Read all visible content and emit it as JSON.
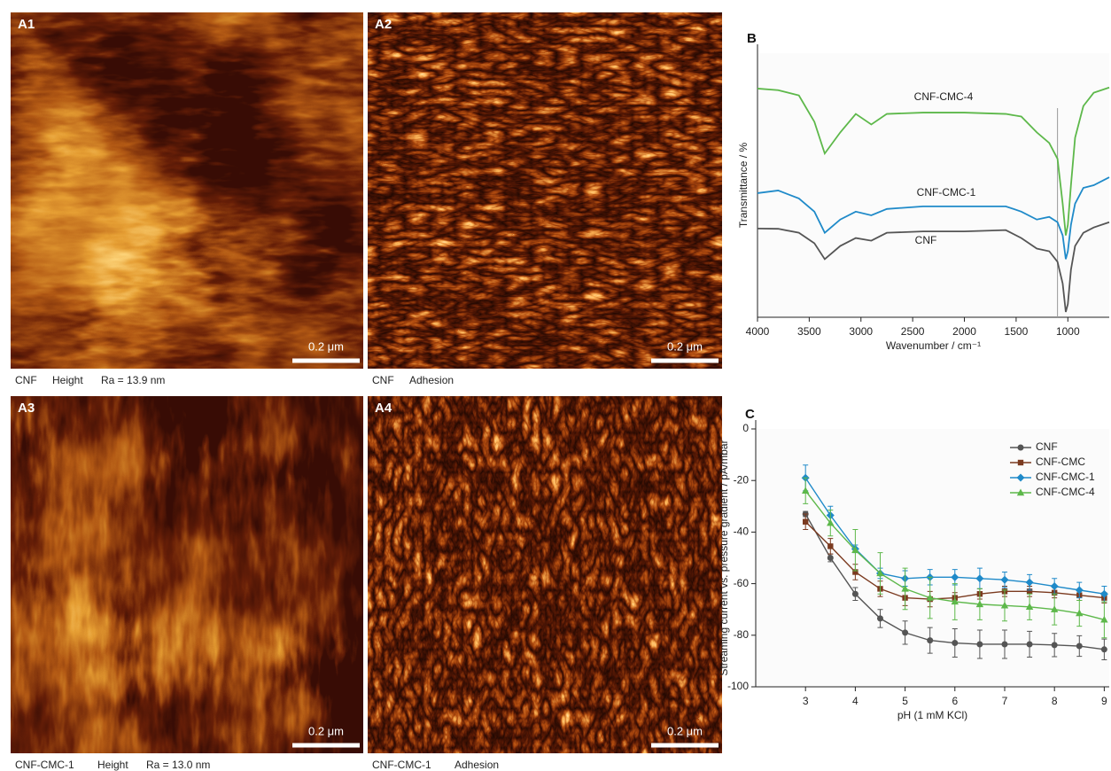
{
  "panels": [
    {
      "label": "A1",
      "sample": "CNF",
      "mode": "Height",
      "roughness": "Ra = 13.9 nm",
      "scale_bar": "0.2 μm"
    },
    {
      "label": "A2",
      "sample": "CNF",
      "mode": "Adhesion",
      "scale_bar": "0.2 μm"
    },
    {
      "label": "A3",
      "sample": "CNF-CMC-1",
      "mode": "Height",
      "roughness": "Ra = 13.0 nm",
      "scale_bar": "0.2 μm"
    },
    {
      "label": "A4",
      "sample": "CNF-CMC-1",
      "mode": "Adhesion",
      "scale_bar": "0.2 μm"
    }
  ],
  "chart_data": [
    {
      "type": "line",
      "panel": "B",
      "xlabel": "Wavenumber / cm⁻¹",
      "ylabel": "Transmittance / %",
      "xlim": [
        4000,
        600
      ],
      "ylim": [
        0,
        100
      ],
      "xticks": [
        4000,
        3500,
        3000,
        2500,
        2000,
        1500,
        1000
      ],
      "reference_line": 1100,
      "x": [
        4000,
        3800,
        3600,
        3450,
        3350,
        3200,
        3050,
        2900,
        2750,
        2400,
        2000,
        1600,
        1450,
        1300,
        1180,
        1100,
        1050,
        1020,
        1000,
        970,
        930,
        850,
        750,
        600
      ],
      "series": [
        {
          "name": "CNF-CMC-4",
          "color": "#5db84a",
          "values": [
            86.6,
            86,
            84,
            74,
            62,
            70,
            77,
            73,
            77,
            77.5,
            77.5,
            77,
            76,
            70,
            66,
            60,
            43,
            31,
            35,
            50,
            68,
            80,
            85,
            87
          ]
        },
        {
          "name": "CNF-CMC-1",
          "color": "#1f8ac9",
          "values": [
            47,
            48,
            45,
            40,
            32,
            37,
            40,
            38.6,
            41,
            42,
            42,
            42,
            40,
            37,
            38,
            36,
            31,
            22,
            25,
            35,
            43,
            49,
            50,
            53
          ]
        },
        {
          "name": "CNF",
          "color": "#555555",
          "values": [
            33.6,
            33.5,
            32,
            28,
            22,
            27,
            30,
            29,
            32,
            32.5,
            32.5,
            33,
            30,
            26,
            25,
            21,
            12.8,
            2,
            5,
            18,
            27,
            32,
            34,
            36
          ]
        }
      ]
    },
    {
      "type": "line",
      "panel": "C",
      "xlabel": "pH (1 mM KCl)",
      "ylabel": "Streaming current vs. pressure gradient / pA/mbar",
      "xlim": [
        2,
        9.1
      ],
      "ylim": [
        -100,
        0
      ],
      "xticks": [
        3,
        4,
        5,
        6,
        7,
        8,
        9
      ],
      "yticks": [
        0,
        -20,
        -40,
        -60,
        -80,
        -100
      ],
      "legend": "upper right",
      "x": [
        3,
        3.5,
        4,
        4.5,
        5,
        5.5,
        6,
        6.5,
        7,
        7.5,
        8,
        8.5,
        9
      ],
      "series": [
        {
          "name": "CNF",
          "color": "#555555",
          "marker": "circle",
          "values": [
            -33,
            -50,
            -64,
            -73.5,
            -79,
            -82,
            -83,
            -83.5,
            -83.5,
            -83.5,
            -83.8,
            -84.2,
            -85.5
          ],
          "errors": [
            1,
            1.5,
            2.5,
            3.5,
            4.5,
            5,
            5.5,
            5.5,
            5.5,
            5,
            4.5,
            4,
            4
          ]
        },
        {
          "name": "CNF-CMC",
          "color": "#7b3a1f",
          "marker": "square",
          "values": [
            -36,
            -45.5,
            -55.5,
            -62,
            -65.5,
            -66,
            -65.5,
            -64,
            -63,
            -63,
            -63.5,
            -64.5,
            -65.5
          ],
          "errors": [
            3,
            3,
            3,
            3,
            3,
            3,
            2,
            2,
            2,
            2,
            2,
            2,
            2
          ]
        },
        {
          "name": "CNF-CMC-1",
          "color": "#1f8ac9",
          "marker": "diamond",
          "values": [
            -19,
            -33.5,
            -46.5,
            -56,
            -58,
            -57.5,
            -57.5,
            -58,
            -58.5,
            -59.5,
            -61,
            -62.5,
            -64
          ],
          "errors": [
            5,
            3.5,
            1.5,
            2,
            3,
            3,
            3,
            4,
            3,
            3,
            3,
            3,
            3
          ]
        },
        {
          "name": "CNF-CMC-4",
          "color": "#5db84a",
          "marker": "triangle",
          "values": [
            -24,
            -36.5,
            -47,
            -56,
            -62,
            -65.5,
            -67,
            -68,
            -68.5,
            -69,
            -70,
            -71.5,
            -74
          ],
          "errors": [
            5,
            5,
            8,
            8,
            8,
            8,
            7,
            6,
            6,
            5,
            6,
            5,
            7
          ]
        }
      ]
    }
  ]
}
